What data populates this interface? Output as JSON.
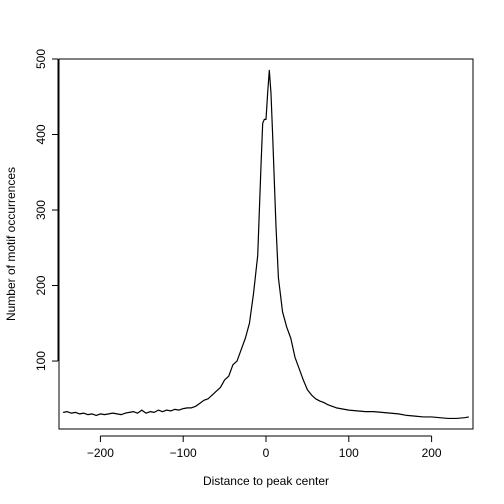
{
  "chart_data": {
    "type": "line",
    "title": "",
    "xlabel": "Distance to peak center",
    "ylabel": "Number of motif occurrences",
    "xlim": [
      -250,
      250
    ],
    "ylim": [
      10,
      500
    ],
    "x_ticks": [
      -200,
      -100,
      0,
      100,
      200
    ],
    "x_tick_labels": [
      "−200",
      "−100",
      "0",
      "100",
      "200"
    ],
    "y_ticks": [
      100,
      200,
      300,
      400,
      500
    ],
    "y_tick_labels": [
      "100",
      "200",
      "300",
      "400",
      "500"
    ],
    "grid": false,
    "legend": "none",
    "line_color": "#000000",
    "series": [
      {
        "x": [
          -245,
          -240,
          -235,
          -230,
          -225,
          -220,
          -215,
          -210,
          -205,
          -200,
          -195,
          -190,
          -185,
          -180,
          -175,
          -170,
          -165,
          -160,
          -155,
          -150,
          -145,
          -140,
          -135,
          -130,
          -125,
          -120,
          -115,
          -110,
          -105,
          -100,
          -95,
          -90,
          -85,
          -80,
          -75,
          -70,
          -65,
          -60,
          -55,
          -50,
          -45,
          -40,
          -35,
          -30,
          -25,
          -20,
          -15,
          -10,
          -8,
          -6,
          -4,
          -2,
          0,
          2,
          4,
          6,
          8,
          10,
          12,
          15,
          20,
          25,
          30,
          35,
          40,
          45,
          50,
          55,
          60,
          65,
          70,
          75,
          80,
          85,
          90,
          95,
          100,
          110,
          120,
          130,
          140,
          150,
          160,
          170,
          180,
          190,
          200,
          210,
          220,
          230,
          240,
          245
        ],
        "y": [
          32,
          33,
          31,
          32,
          30,
          31,
          29,
          30,
          28,
          30,
          29,
          30,
          31,
          30,
          29,
          31,
          32,
          33,
          31,
          35,
          31,
          33,
          32,
          35,
          33,
          35,
          34,
          36,
          35,
          37,
          38,
          38,
          40,
          44,
          48,
          50,
          55,
          60,
          65,
          75,
          80,
          95,
          100,
          115,
          130,
          150,
          190,
          240,
          300,
          360,
          415,
          420,
          420,
          455,
          485,
          455,
          400,
          340,
          280,
          210,
          165,
          145,
          130,
          105,
          90,
          75,
          62,
          55,
          50,
          47,
          45,
          42,
          40,
          38,
          37,
          36,
          35,
          34,
          33,
          33,
          32,
          31,
          30,
          28,
          27,
          26,
          26,
          25,
          24,
          24,
          25,
          26
        ]
      }
    ]
  }
}
